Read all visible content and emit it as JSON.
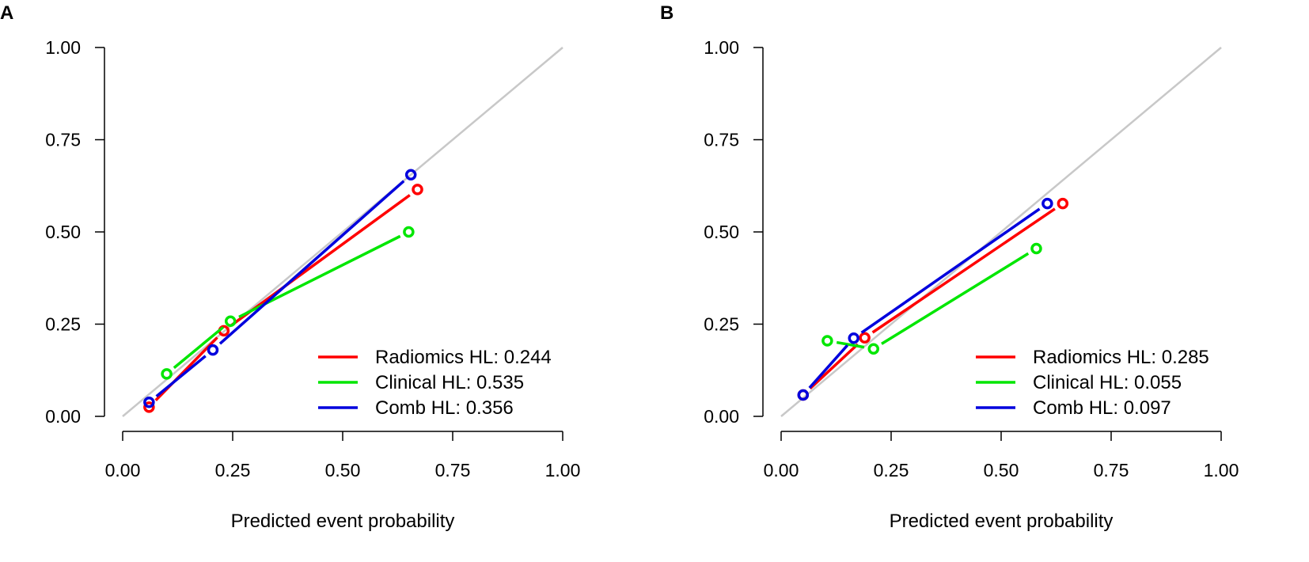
{
  "chart_data": [
    {
      "panel": "A",
      "type": "line",
      "title": "",
      "xlabel": "Predicted event probability",
      "ylabel": "",
      "xlim": [
        0,
        1
      ],
      "ylim": [
        0,
        1
      ],
      "ticks": [
        "0.00",
        "0.25",
        "0.50",
        "0.75",
        "1.00"
      ],
      "reference_line": {
        "color": "#c8c8c8",
        "points": [
          [
            0,
            0
          ],
          [
            1,
            1
          ]
        ]
      },
      "legend_position": "bottom-right",
      "series": [
        {
          "name": "Radiomics",
          "legend": "Radiomics HL: 0.244",
          "color": "#ff0000",
          "points": [
            [
              0.06,
              0.025
            ],
            [
              0.23,
              0.232
            ],
            [
              0.67,
              0.615
            ]
          ]
        },
        {
          "name": "Clinical",
          "legend": "Clinical HL: 0.535",
          "color": "#00e600",
          "points": [
            [
              0.1,
              0.115
            ],
            [
              0.245,
              0.258
            ],
            [
              0.65,
              0.5
            ]
          ]
        },
        {
          "name": "Comb",
          "legend": "Comb HL: 0.356",
          "color": "#0000dd",
          "points": [
            [
              0.06,
              0.038
            ],
            [
              0.205,
              0.18
            ],
            [
              0.655,
              0.655
            ]
          ]
        }
      ]
    },
    {
      "panel": "B",
      "type": "line",
      "title": "",
      "xlabel": "Predicted event probability",
      "ylabel": "",
      "xlim": [
        0,
        1
      ],
      "ylim": [
        0,
        1
      ],
      "ticks": [
        "0.00",
        "0.25",
        "0.50",
        "0.75",
        "1.00"
      ],
      "reference_line": {
        "color": "#c8c8c8",
        "points": [
          [
            0,
            0
          ],
          [
            1,
            1
          ]
        ]
      },
      "legend_position": "bottom-right",
      "series": [
        {
          "name": "Radiomics",
          "legend": "Radiomics HL: 0.285",
          "color": "#ff0000",
          "points": [
            [
              0.05,
              0.058
            ],
            [
              0.19,
              0.213
            ],
            [
              0.64,
              0.577
            ]
          ]
        },
        {
          "name": "Clinical",
          "legend": "Clinical HL: 0.055",
          "color": "#00e600",
          "points": [
            [
              0.105,
              0.205
            ],
            [
              0.21,
              0.183
            ],
            [
              0.58,
              0.455
            ]
          ]
        },
        {
          "name": "Comb",
          "legend": "Comb HL: 0.097",
          "color": "#0000dd",
          "points": [
            [
              0.05,
              0.058
            ],
            [
              0.165,
              0.212
            ],
            [
              0.605,
              0.577
            ]
          ]
        }
      ]
    }
  ]
}
